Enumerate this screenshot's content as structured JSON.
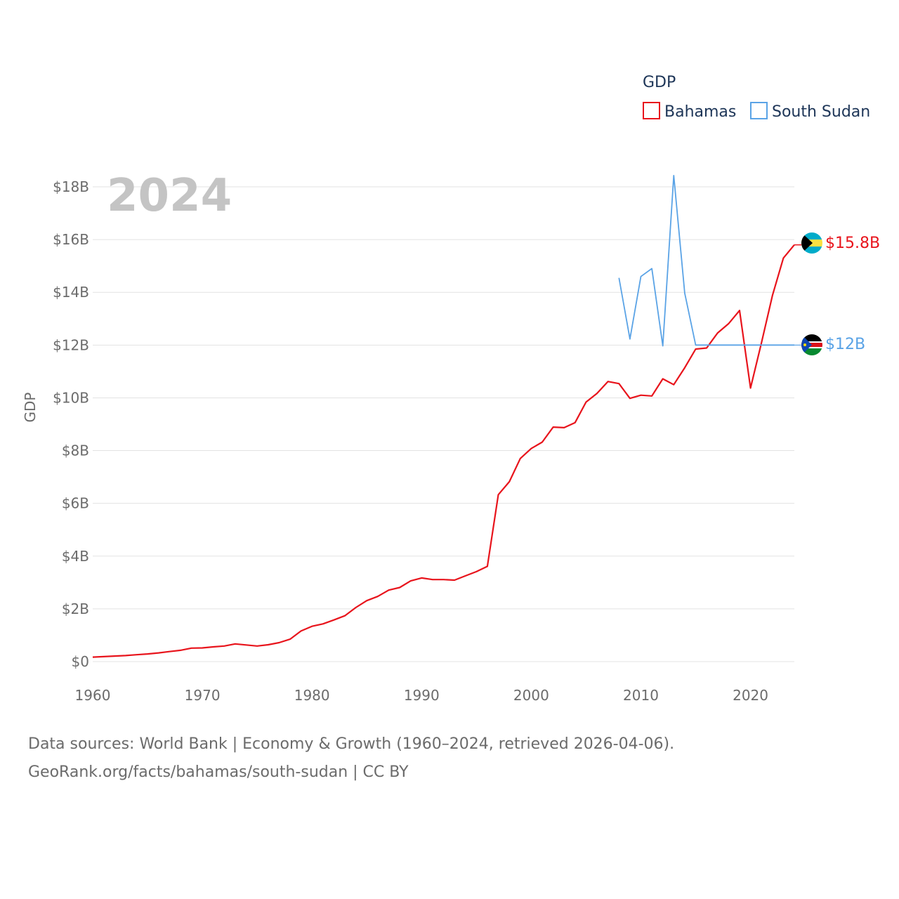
{
  "chart_data": {
    "type": "line",
    "title": "",
    "year_label": "2024",
    "xlabel": "",
    "ylabel": "GDP",
    "xlim": [
      1960,
      2024
    ],
    "ylim": [
      0,
      18
    ],
    "x_ticks": [
      1960,
      1970,
      1980,
      1990,
      2000,
      2010,
      2020
    ],
    "x_tick_labels": [
      "1960",
      "1970",
      "1980",
      "1990",
      "2000",
      "2010",
      "2020"
    ],
    "y_ticks": [
      0,
      2,
      4,
      6,
      8,
      10,
      12,
      14,
      16,
      18
    ],
    "y_tick_labels": [
      "$0",
      "$2B",
      "$4B",
      "$6B",
      "$8B",
      "$10B",
      "$12B",
      "$14B",
      "$16B",
      "$18B"
    ],
    "legend": {
      "title": "GDP",
      "position": "top-right"
    },
    "grid": true,
    "series": [
      {
        "name": "Bahamas",
        "color": "#e8141c",
        "end_label": "$15.8B",
        "x": [
          1960,
          1961,
          1962,
          1963,
          1964,
          1965,
          1966,
          1967,
          1968,
          1969,
          1970,
          1971,
          1972,
          1973,
          1974,
          1975,
          1976,
          1977,
          1978,
          1979,
          1980,
          1981,
          1982,
          1983,
          1984,
          1985,
          1986,
          1987,
          1988,
          1989,
          1990,
          1991,
          1992,
          1993,
          1994,
          1995,
          1996,
          1997,
          1998,
          1999,
          2000,
          2001,
          2002,
          2003,
          2004,
          2005,
          2006,
          2007,
          2008,
          2009,
          2010,
          2011,
          2012,
          2013,
          2014,
          2015,
          2016,
          2017,
          2018,
          2019,
          2020,
          2021,
          2022,
          2023,
          2024
        ],
        "values": [
          0.17,
          0.19,
          0.21,
          0.23,
          0.26,
          0.29,
          0.33,
          0.38,
          0.43,
          0.51,
          0.52,
          0.56,
          0.59,
          0.67,
          0.63,
          0.59,
          0.64,
          0.72,
          0.85,
          1.16,
          1.34,
          1.43,
          1.58,
          1.74,
          2.05,
          2.31,
          2.47,
          2.71,
          2.81,
          3.06,
          3.17,
          3.11,
          3.11,
          3.09,
          3.25,
          3.41,
          3.61,
          6.33,
          6.82,
          7.7,
          8.08,
          8.32,
          8.89,
          8.87,
          9.06,
          9.84,
          10.17,
          10.62,
          10.54,
          9.98,
          10.1,
          10.07,
          10.72,
          10.5,
          11.14,
          11.85,
          11.89,
          12.46,
          12.81,
          13.31,
          10.37,
          12.09,
          13.88,
          15.3,
          15.8
        ]
      },
      {
        "name": "South Sudan",
        "color": "#5aa3e6",
        "end_label": "$12B",
        "x": [
          2008,
          2009,
          2010,
          2011,
          2012,
          2013,
          2014,
          2015,
          2016,
          2017,
          2018,
          2019,
          2020,
          2021,
          2022,
          2023,
          2024
        ],
        "values": [
          14.55,
          12.23,
          14.6,
          14.9,
          11.97,
          18.43,
          13.97,
          12.0,
          12.0,
          12.0,
          12.0,
          12.0,
          12.0,
          12.0,
          12.0,
          12.0,
          12.0
        ]
      }
    ]
  },
  "flags": {
    "bahamas": {
      "name": "Bahamas",
      "colors": [
        "#00abc9",
        "#fae042",
        "#000000"
      ]
    },
    "south_sudan": {
      "name": "South Sudan",
      "colors": [
        "#000000",
        "#ffffff",
        "#da121a",
        "#078930",
        "#0f47af",
        "#fcdd09"
      ]
    }
  },
  "footer": {
    "line1": "Data sources: World Bank | Economy & Growth (1960–2024, retrieved 2026-04-06).",
    "line2": "GeoRank.org/facts/bahamas/south-sudan | CC BY"
  }
}
